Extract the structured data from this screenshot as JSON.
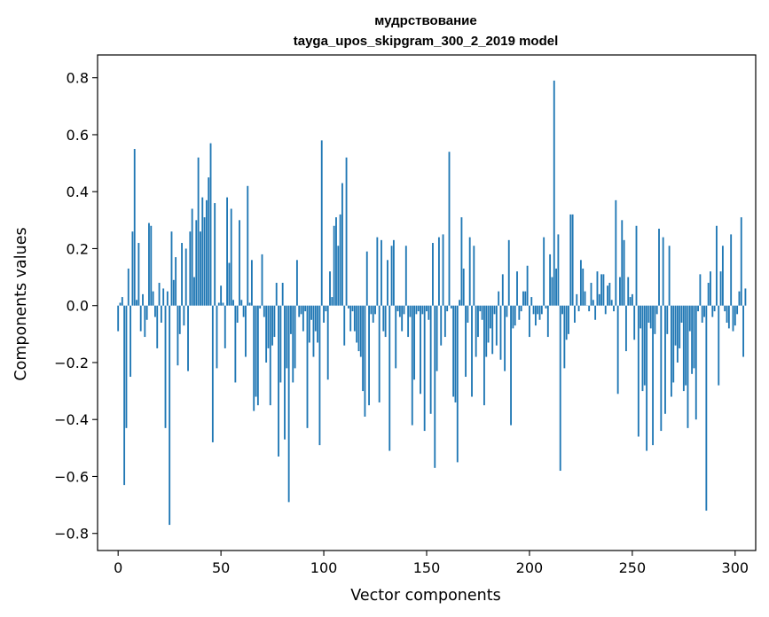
{
  "chart_data": {
    "type": "bar",
    "title": "мудрствование",
    "subtitle": "tayga_upos_skipgram_300_2_2019 model",
    "xlabel": "Vector components",
    "ylabel": "Components values",
    "xlim": [
      -10,
      310
    ],
    "ylim": [
      -0.86,
      0.88
    ],
    "xticks": [
      0,
      50,
      100,
      150,
      200,
      250,
      300
    ],
    "yticks": [
      -0.8,
      -0.6,
      -0.4,
      -0.2,
      0.0,
      0.2,
      0.4,
      0.6,
      0.8
    ],
    "ytick_labels": [
      "−0.8",
      "−0.6",
      "−0.4",
      "−0.2",
      "0.0",
      "0.2",
      "0.4",
      "0.6",
      "0.8"
    ],
    "bar_color": "#1f77b4",
    "grid": false,
    "values": [
      -0.09,
      0.01,
      0.03,
      -0.63,
      -0.43,
      0.13,
      -0.25,
      0.26,
      0.55,
      0.02,
      0.22,
      -0.09,
      0.04,
      -0.11,
      -0.05,
      0.29,
      0.28,
      0.05,
      -0.04,
      -0.15,
      0.08,
      -0.06,
      0.06,
      -0.43,
      0.05,
      -0.77,
      0.26,
      0.09,
      0.17,
      -0.21,
      -0.1,
      0.22,
      -0.07,
      0.2,
      -0.23,
      0.26,
      0.34,
      0.1,
      0.3,
      0.52,
      0.26,
      0.38,
      0.31,
      0.37,
      0.45,
      0.57,
      -0.48,
      0.36,
      -0.22,
      0.01,
      0.07,
      0.01,
      -0.15,
      0.38,
      0.15,
      0.34,
      0.02,
      -0.27,
      -0.06,
      0.3,
      0.02,
      -0.04,
      -0.18,
      0.42,
      0.01,
      0.16,
      -0.37,
      -0.32,
      -0.35,
      -0.01,
      0.18,
      -0.04,
      -0.2,
      -0.15,
      -0.35,
      -0.14,
      -0.11,
      0.08,
      -0.53,
      -0.27,
      0.08,
      -0.47,
      -0.22,
      -0.69,
      -0.1,
      -0.27,
      -0.22,
      0.16,
      -0.04,
      -0.03,
      -0.09,
      -0.02,
      -0.43,
      -0.13,
      -0.05,
      -0.18,
      -0.09,
      -0.13,
      -0.49,
      0.58,
      -0.06,
      -0.02,
      -0.26,
      0.12,
      0.03,
      0.28,
      0.31,
      0.21,
      0.32,
      0.43,
      -0.14,
      0.52,
      -0.01,
      -0.09,
      -0.02,
      -0.09,
      -0.13,
      -0.16,
      -0.18,
      -0.3,
      -0.39,
      0.19,
      -0.35,
      -0.03,
      -0.06,
      -0.03,
      0.24,
      -0.34,
      0.23,
      -0.09,
      -0.11,
      0.16,
      -0.51,
      0.21,
      0.23,
      -0.22,
      -0.02,
      -0.04,
      -0.09,
      -0.03,
      0.21,
      -0.11,
      -0.04,
      -0.42,
      -0.26,
      -0.03,
      -0.02,
      -0.31,
      -0.03,
      -0.44,
      -0.02,
      -0.05,
      -0.38,
      0.22,
      -0.57,
      -0.23,
      0.24,
      -0.14,
      0.25,
      -0.11,
      -0.02,
      0.54,
      -0.01,
      -0.32,
      -0.34,
      -0.55,
      0.02,
      0.31,
      0.13,
      -0.25,
      -0.06,
      0.24,
      -0.32,
      0.21,
      -0.18,
      -0.11,
      -0.02,
      -0.05,
      -0.35,
      -0.18,
      -0.13,
      -0.08,
      -0.17,
      -0.03,
      -0.14,
      0.05,
      -0.19,
      0.11,
      -0.23,
      -0.04,
      0.23,
      -0.42,
      -0.08,
      -0.07,
      0.12,
      -0.05,
      -0.02,
      0.05,
      0.05,
      0.14,
      -0.11,
      0.03,
      -0.03,
      -0.07,
      -0.03,
      -0.05,
      -0.03,
      0.24,
      -0.01,
      -0.11,
      0.18,
      0.1,
      0.79,
      0.13,
      0.25,
      -0.58,
      -0.03,
      -0.22,
      -0.12,
      -0.1,
      0.32,
      0.32,
      -0.06,
      0.04,
      -0.02,
      0.16,
      0.13,
      0.05,
      0.0,
      -0.02,
      0.08,
      0.02,
      -0.05,
      0.12,
      0.04,
      0.11,
      0.11,
      -0.03,
      0.07,
      0.08,
      0.02,
      -0.02,
      0.37,
      -0.31,
      0.1,
      0.3,
      0.23,
      -0.16,
      0.1,
      0.03,
      0.04,
      -0.12,
      0.28,
      -0.46,
      -0.08,
      -0.3,
      -0.28,
      -0.51,
      -0.06,
      -0.08,
      -0.49,
      -0.1,
      -0.03,
      0.27,
      -0.44,
      0.24,
      -0.38,
      -0.1,
      0.21,
      -0.32,
      -0.27,
      -0.14,
      -0.2,
      -0.15,
      -0.06,
      -0.3,
      -0.28,
      -0.43,
      -0.09,
      -0.24,
      -0.22,
      -0.4,
      -0.02,
      0.11,
      -0.06,
      -0.04,
      -0.72,
      0.08,
      0.12,
      -0.04,
      -0.02,
      0.28,
      -0.28,
      0.12,
      0.21,
      -0.02,
      -0.06,
      -0.08,
      0.25,
      -0.09,
      -0.07,
      -0.03,
      0.05,
      0.31,
      -0.18,
      0.06
    ]
  }
}
